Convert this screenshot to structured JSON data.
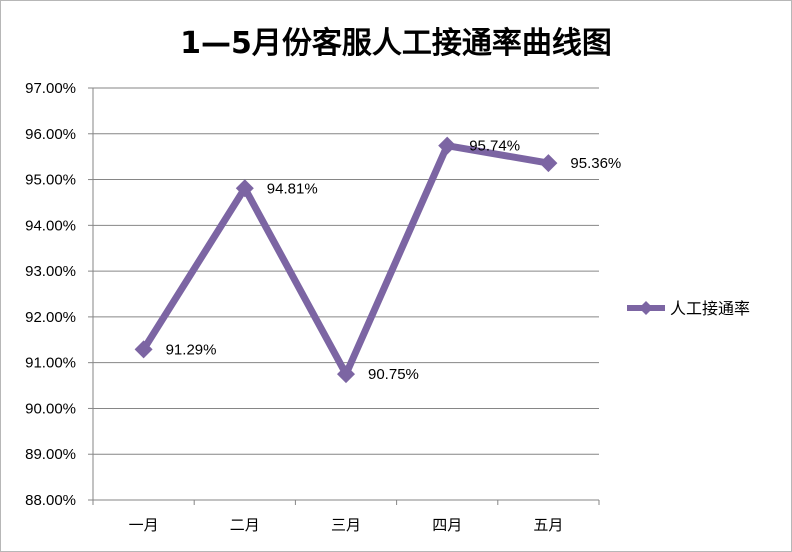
{
  "chart_data": {
    "type": "line",
    "title": "1—5月份客服人工接通率曲线图",
    "categories": [
      "一月",
      "二月",
      "三月",
      "四月",
      "五月"
    ],
    "series": [
      {
        "name": "人工接通率",
        "values": [
          91.29,
          94.81,
          90.75,
          95.74,
          95.36
        ],
        "labels": [
          "91.29%",
          "94.81%",
          "90.75%",
          "95.74%",
          "95.36%"
        ],
        "color": "#7c65a3",
        "marker": "diamond"
      }
    ],
    "ylim": [
      88,
      97
    ],
    "yticks": [
      97,
      96,
      95,
      94,
      93,
      92,
      91,
      90,
      89,
      88
    ],
    "ytick_labels": [
      "97.00%",
      "96.00%",
      "95.00%",
      "94.00%",
      "93.00%",
      "92.00%",
      "91.00%",
      "90.00%",
      "89.00%",
      "88.00%"
    ],
    "xlabel": "",
    "ylabel": "",
    "grid": true,
    "legend_position": "right",
    "gridline_color": "#868686",
    "axis_color": "#868686"
  }
}
